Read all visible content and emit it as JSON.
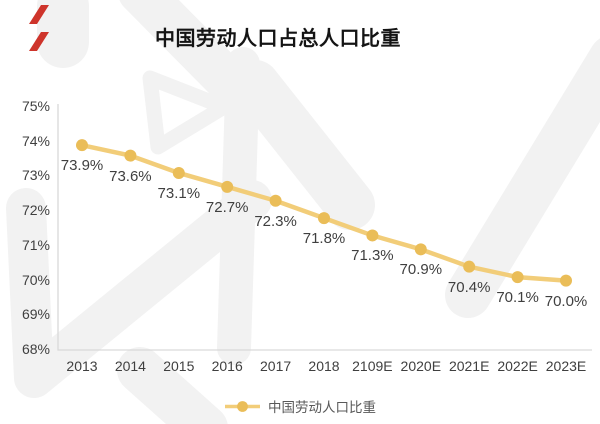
{
  "brand": {
    "accent_color": "#CE342B"
  },
  "chart_data": {
    "type": "line",
    "title": "中国劳动人口占总人口比重",
    "categories": [
      "2013",
      "2014",
      "2015",
      "2016",
      "2017",
      "2018",
      "2109E",
      "2020E",
      "2021E",
      "2022E",
      "2023E"
    ],
    "series": [
      {
        "name": "中国劳动人口比重",
        "values": [
          73.9,
          73.6,
          73.1,
          72.7,
          72.3,
          71.8,
          71.3,
          70.9,
          70.4,
          70.1,
          70.0
        ],
        "labels": [
          "73.9%",
          "73.6%",
          "73.1%",
          "72.7%",
          "72.3%",
          "71.8%",
          "71.3%",
          "70.9%",
          "70.4%",
          "70.1%",
          "70.0%"
        ]
      }
    ],
    "y_ticks": [
      "75%",
      "74%",
      "73%",
      "72%",
      "71%",
      "70%",
      "69%",
      "68%"
    ],
    "ylim": [
      68,
      75
    ],
    "xlabel": "",
    "ylabel": "",
    "grid": "off",
    "legend_position": "bottom",
    "line_color": "#F2CD79",
    "marker_color": "#EABD58",
    "axis_color": "#D9D9D9",
    "label_color": "#3F3F3F",
    "watermark_color": "#F2F2F2"
  }
}
